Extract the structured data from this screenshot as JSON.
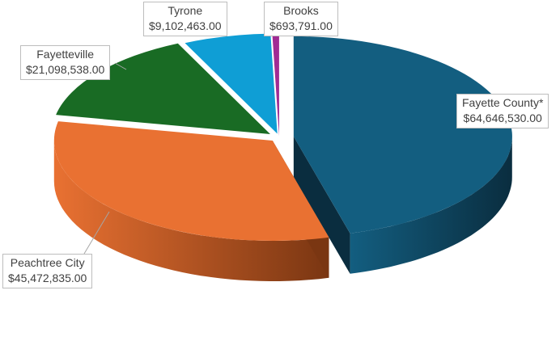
{
  "chart_data": {
    "type": "pie",
    "style": "3d-exploded",
    "legend": "none",
    "slices": [
      {
        "name": "Fayette County*",
        "value": 64646530.0,
        "label_value": "$64,646,530.00",
        "color": "#135e80"
      },
      {
        "name": "Peachtree City",
        "value": 45472835.0,
        "label_value": "$45,472,835.00",
        "color": "#e97132"
      },
      {
        "name": "Fayetteville",
        "value": 21098538.0,
        "label_value": "$21,098,538.00",
        "color": "#196b24"
      },
      {
        "name": "Tyrone",
        "value": 9102463.0,
        "label_value": "$9,102,463.00",
        "color": "#0f9ed5"
      },
      {
        "name": "Brooks",
        "value": 693791.0,
        "label_value": "$693,791.00",
        "color": "#a02b93"
      }
    ]
  }
}
